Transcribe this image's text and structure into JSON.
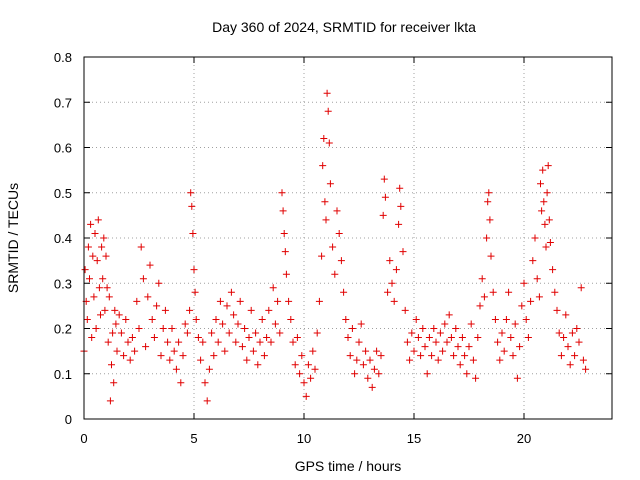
{
  "chart_data": {
    "type": "scatter",
    "title": "Day 360 of 2024, SRMTID for receiver lkta",
    "xlabel": "GPS time / hours",
    "ylabel": "SRMTID / TECUs",
    "xlim": [
      0,
      24
    ],
    "ylim": [
      0,
      0.8
    ],
    "xticks": [
      0,
      5,
      10,
      15,
      20
    ],
    "yticks": [
      0,
      0.1,
      0.2,
      0.3,
      0.4,
      0.5,
      0.6,
      0.7,
      0.8
    ],
    "grid": true,
    "marker": "plus",
    "color": "#e00000",
    "series": [
      {
        "name": "SRMTID",
        "points": [
          [
            0.0,
            0.15
          ],
          [
            0.05,
            0.33
          ],
          [
            0.1,
            0.26
          ],
          [
            0.15,
            0.22
          ],
          [
            0.2,
            0.38
          ],
          [
            0.25,
            0.31
          ],
          [
            0.3,
            0.43
          ],
          [
            0.35,
            0.18
          ],
          [
            0.4,
            0.36
          ],
          [
            0.45,
            0.27
          ],
          [
            0.5,
            0.41
          ],
          [
            0.55,
            0.2
          ],
          [
            0.6,
            0.35
          ],
          [
            0.65,
            0.44
          ],
          [
            0.7,
            0.29
          ],
          [
            0.75,
            0.23
          ],
          [
            0.8,
            0.38
          ],
          [
            0.85,
            0.31
          ],
          [
            0.9,
            0.4
          ],
          [
            0.95,
            0.24
          ],
          [
            1.0,
            0.36
          ],
          [
            1.05,
            0.29
          ],
          [
            1.1,
            0.17
          ],
          [
            1.15,
            0.27
          ],
          [
            1.2,
            0.04
          ],
          [
            1.25,
            0.12
          ],
          [
            1.3,
            0.19
          ],
          [
            1.35,
            0.08
          ],
          [
            1.4,
            0.24
          ],
          [
            1.45,
            0.21
          ],
          [
            1.5,
            0.15
          ],
          [
            1.6,
            0.23
          ],
          [
            1.7,
            0.19
          ],
          [
            1.8,
            0.14
          ],
          [
            1.9,
            0.22
          ],
          [
            2.0,
            0.17
          ],
          [
            2.1,
            0.13
          ],
          [
            2.2,
            0.18
          ],
          [
            2.3,
            0.15
          ],
          [
            2.4,
            0.26
          ],
          [
            2.5,
            0.2
          ],
          [
            2.6,
            0.38
          ],
          [
            2.7,
            0.31
          ],
          [
            2.8,
            0.16
          ],
          [
            2.9,
            0.27
          ],
          [
            3.0,
            0.34
          ],
          [
            3.1,
            0.22
          ],
          [
            3.2,
            0.18
          ],
          [
            3.3,
            0.25
          ],
          [
            3.4,
            0.3
          ],
          [
            3.5,
            0.14
          ],
          [
            3.6,
            0.2
          ],
          [
            3.7,
            0.24
          ],
          [
            3.8,
            0.17
          ],
          [
            3.9,
            0.13
          ],
          [
            4.0,
            0.2
          ],
          [
            4.1,
            0.15
          ],
          [
            4.2,
            0.11
          ],
          [
            4.3,
            0.17
          ],
          [
            4.4,
            0.08
          ],
          [
            4.5,
            0.14
          ],
          [
            4.6,
            0.21
          ],
          [
            4.7,
            0.19
          ],
          [
            4.8,
            0.24
          ],
          [
            4.85,
            0.5
          ],
          [
            4.9,
            0.47
          ],
          [
            4.95,
            0.41
          ],
          [
            5.0,
            0.33
          ],
          [
            5.05,
            0.28
          ],
          [
            5.1,
            0.22
          ],
          [
            5.2,
            0.18
          ],
          [
            5.3,
            0.13
          ],
          [
            5.4,
            0.17
          ],
          [
            5.5,
            0.08
          ],
          [
            5.6,
            0.04
          ],
          [
            5.7,
            0.11
          ],
          [
            5.8,
            0.19
          ],
          [
            5.9,
            0.14
          ],
          [
            6.0,
            0.22
          ],
          [
            6.1,
            0.17
          ],
          [
            6.2,
            0.26
          ],
          [
            6.3,
            0.21
          ],
          [
            6.4,
            0.15
          ],
          [
            6.5,
            0.25
          ],
          [
            6.6,
            0.19
          ],
          [
            6.7,
            0.28
          ],
          [
            6.8,
            0.23
          ],
          [
            6.9,
            0.17
          ],
          [
            7.0,
            0.21
          ],
          [
            7.1,
            0.26
          ],
          [
            7.2,
            0.16
          ],
          [
            7.3,
            0.2
          ],
          [
            7.4,
            0.13
          ],
          [
            7.5,
            0.18
          ],
          [
            7.6,
            0.24
          ],
          [
            7.7,
            0.15
          ],
          [
            7.8,
            0.19
          ],
          [
            7.9,
            0.12
          ],
          [
            8.0,
            0.17
          ],
          [
            8.1,
            0.22
          ],
          [
            8.2,
            0.14
          ],
          [
            8.3,
            0.18
          ],
          [
            8.4,
            0.24
          ],
          [
            8.5,
            0.17
          ],
          [
            8.6,
            0.29
          ],
          [
            8.7,
            0.21
          ],
          [
            8.8,
            0.26
          ],
          [
            8.9,
            0.19
          ],
          [
            9.0,
            0.5
          ],
          [
            9.05,
            0.46
          ],
          [
            9.1,
            0.41
          ],
          [
            9.15,
            0.37
          ],
          [
            9.2,
            0.32
          ],
          [
            9.3,
            0.26
          ],
          [
            9.4,
            0.22
          ],
          [
            9.5,
            0.17
          ],
          [
            9.6,
            0.12
          ],
          [
            9.7,
            0.18
          ],
          [
            9.8,
            0.1
          ],
          [
            9.9,
            0.14
          ],
          [
            10.0,
            0.08
          ],
          [
            10.1,
            0.05
          ],
          [
            10.2,
            0.12
          ],
          [
            10.3,
            0.09
          ],
          [
            10.4,
            0.15
          ],
          [
            10.5,
            0.11
          ],
          [
            10.6,
            0.19
          ],
          [
            10.7,
            0.26
          ],
          [
            10.8,
            0.36
          ],
          [
            10.85,
            0.56
          ],
          [
            10.9,
            0.62
          ],
          [
            10.95,
            0.48
          ],
          [
            11.0,
            0.44
          ],
          [
            11.05,
            0.72
          ],
          [
            11.1,
            0.68
          ],
          [
            11.15,
            0.61
          ],
          [
            11.2,
            0.52
          ],
          [
            11.3,
            0.38
          ],
          [
            11.4,
            0.32
          ],
          [
            11.5,
            0.46
          ],
          [
            11.6,
            0.41
          ],
          [
            11.7,
            0.35
          ],
          [
            11.8,
            0.28
          ],
          [
            11.9,
            0.22
          ],
          [
            12.0,
            0.18
          ],
          [
            12.1,
            0.14
          ],
          [
            12.2,
            0.2
          ],
          [
            12.3,
            0.1
          ],
          [
            12.4,
            0.13
          ],
          [
            12.5,
            0.17
          ],
          [
            12.6,
            0.21
          ],
          [
            12.7,
            0.12
          ],
          [
            12.8,
            0.15
          ],
          [
            12.9,
            0.09
          ],
          [
            13.0,
            0.13
          ],
          [
            13.1,
            0.07
          ],
          [
            13.2,
            0.11
          ],
          [
            13.3,
            0.15
          ],
          [
            13.4,
            0.1
          ],
          [
            13.5,
            0.14
          ],
          [
            13.6,
            0.45
          ],
          [
            13.65,
            0.53
          ],
          [
            13.7,
            0.49
          ],
          [
            13.8,
            0.28
          ],
          [
            13.9,
            0.35
          ],
          [
            14.0,
            0.3
          ],
          [
            14.1,
            0.26
          ],
          [
            14.2,
            0.33
          ],
          [
            14.3,
            0.43
          ],
          [
            14.35,
            0.51
          ],
          [
            14.4,
            0.47
          ],
          [
            14.5,
            0.37
          ],
          [
            14.6,
            0.24
          ],
          [
            14.7,
            0.17
          ],
          [
            14.8,
            0.13
          ],
          [
            14.9,
            0.19
          ],
          [
            15.0,
            0.15
          ],
          [
            15.1,
            0.22
          ],
          [
            15.2,
            0.18
          ],
          [
            15.3,
            0.14
          ],
          [
            15.4,
            0.2
          ],
          [
            15.5,
            0.16
          ],
          [
            15.6,
            0.1
          ],
          [
            15.7,
            0.18
          ],
          [
            15.8,
            0.14
          ],
          [
            15.9,
            0.2
          ],
          [
            16.0,
            0.17
          ],
          [
            16.1,
            0.13
          ],
          [
            16.2,
            0.19
          ],
          [
            16.3,
            0.15
          ],
          [
            16.4,
            0.21
          ],
          [
            16.5,
            0.17
          ],
          [
            16.6,
            0.23
          ],
          [
            16.7,
            0.18
          ],
          [
            16.8,
            0.14
          ],
          [
            16.9,
            0.2
          ],
          [
            17.0,
            0.16
          ],
          [
            17.1,
            0.12
          ],
          [
            17.2,
            0.18
          ],
          [
            17.3,
            0.14
          ],
          [
            17.4,
            0.1
          ],
          [
            17.5,
            0.16
          ],
          [
            17.6,
            0.21
          ],
          [
            17.7,
            0.13
          ],
          [
            17.8,
            0.09
          ],
          [
            17.9,
            0.18
          ],
          [
            18.0,
            0.25
          ],
          [
            18.1,
            0.31
          ],
          [
            18.2,
            0.27
          ],
          [
            18.3,
            0.4
          ],
          [
            18.35,
            0.48
          ],
          [
            18.4,
            0.5
          ],
          [
            18.45,
            0.44
          ],
          [
            18.5,
            0.36
          ],
          [
            18.6,
            0.28
          ],
          [
            18.7,
            0.22
          ],
          [
            18.8,
            0.17
          ],
          [
            18.9,
            0.13
          ],
          [
            19.0,
            0.19
          ],
          [
            19.1,
            0.15
          ],
          [
            19.2,
            0.22
          ],
          [
            19.3,
            0.28
          ],
          [
            19.4,
            0.18
          ],
          [
            19.5,
            0.14
          ],
          [
            19.6,
            0.21
          ],
          [
            19.7,
            0.09
          ],
          [
            19.8,
            0.16
          ],
          [
            19.9,
            0.25
          ],
          [
            20.0,
            0.3
          ],
          [
            20.1,
            0.22
          ],
          [
            20.2,
            0.18
          ],
          [
            20.3,
            0.26
          ],
          [
            20.4,
            0.35
          ],
          [
            20.5,
            0.4
          ],
          [
            20.6,
            0.31
          ],
          [
            20.7,
            0.27
          ],
          [
            20.75,
            0.52
          ],
          [
            20.8,
            0.46
          ],
          [
            20.85,
            0.55
          ],
          [
            20.9,
            0.48
          ],
          [
            20.95,
            0.43
          ],
          [
            21.0,
            0.38
          ],
          [
            21.05,
            0.5
          ],
          [
            21.1,
            0.56
          ],
          [
            21.15,
            0.44
          ],
          [
            21.2,
            0.39
          ],
          [
            21.3,
            0.33
          ],
          [
            21.4,
            0.28
          ],
          [
            21.5,
            0.24
          ],
          [
            21.6,
            0.19
          ],
          [
            21.7,
            0.14
          ],
          [
            21.8,
            0.18
          ],
          [
            21.9,
            0.23
          ],
          [
            22.0,
            0.16
          ],
          [
            22.1,
            0.12
          ],
          [
            22.2,
            0.19
          ],
          [
            22.3,
            0.14
          ],
          [
            22.4,
            0.2
          ],
          [
            22.5,
            0.17
          ],
          [
            22.6,
            0.29
          ],
          [
            22.7,
            0.13
          ],
          [
            22.8,
            0.11
          ]
        ]
      }
    ]
  }
}
